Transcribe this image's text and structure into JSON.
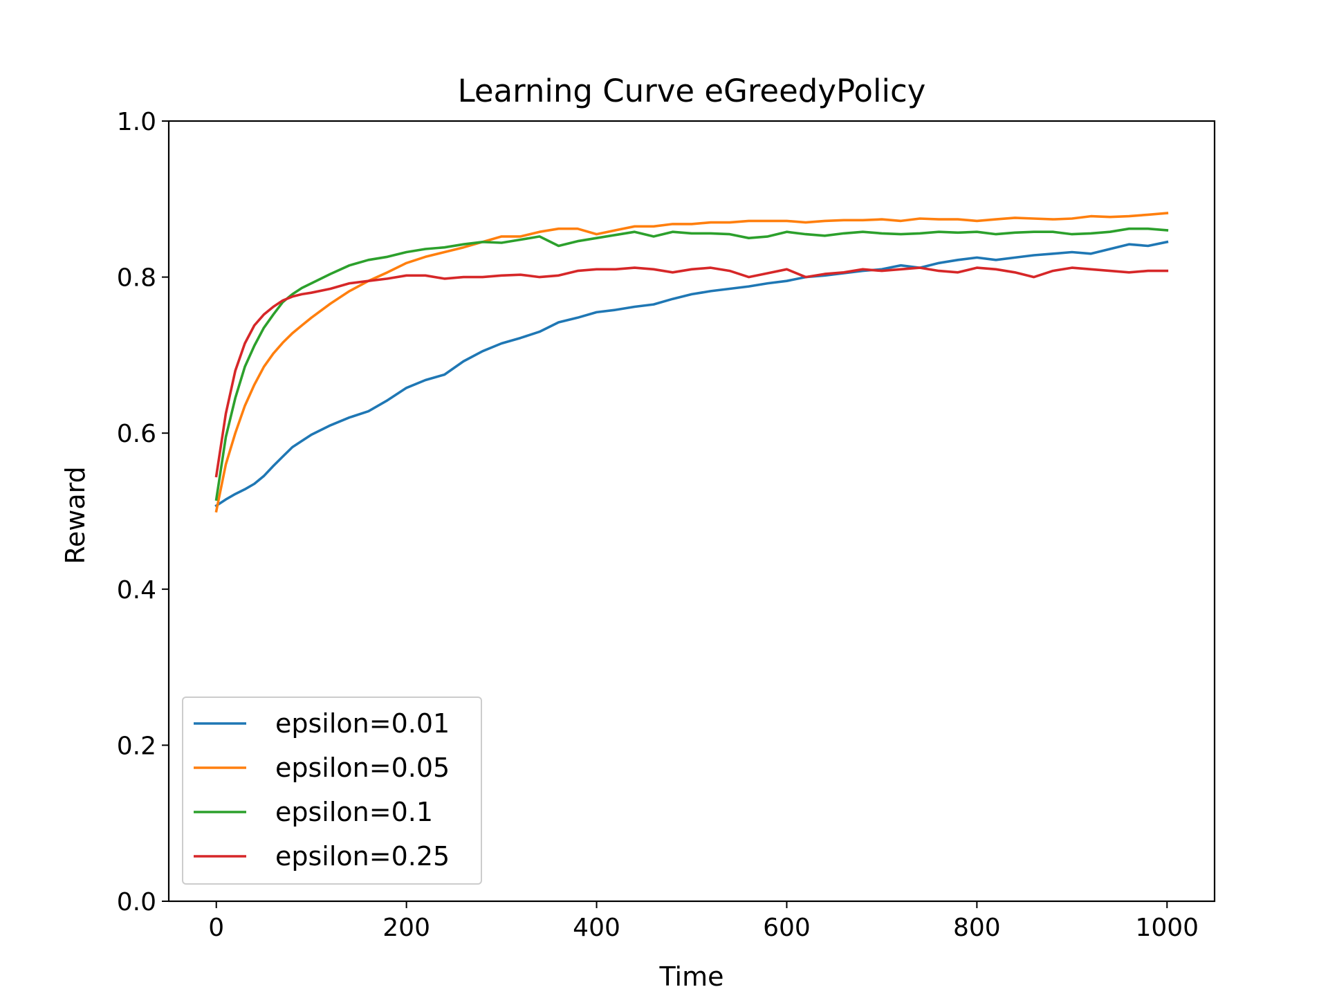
{
  "chart_data": {
    "type": "line",
    "title": "Learning Curve eGreedyPolicy",
    "xlabel": "Time",
    "ylabel": "Reward",
    "xlim": [
      -50,
      1050
    ],
    "ylim": [
      0.0,
      1.0
    ],
    "xticks": [
      0,
      200,
      400,
      600,
      800,
      1000
    ],
    "yticks": [
      0.0,
      0.2,
      0.4,
      0.6,
      0.8,
      1.0
    ],
    "xtick_labels": [
      "0",
      "200",
      "400",
      "600",
      "800",
      "1000"
    ],
    "ytick_labels": [
      "0.0",
      "0.2",
      "0.4",
      "0.6",
      "0.8",
      "1.0"
    ],
    "grid": false,
    "legend_position": "lower-left",
    "series": [
      {
        "name": "epsilon=0.01",
        "color": "#1f77b4",
        "x": [
          0,
          10,
          20,
          30,
          40,
          50,
          60,
          70,
          80,
          90,
          100,
          120,
          140,
          160,
          180,
          200,
          220,
          240,
          260,
          280,
          300,
          320,
          340,
          360,
          380,
          400,
          420,
          440,
          460,
          480,
          500,
          520,
          540,
          560,
          580,
          600,
          620,
          640,
          660,
          680,
          700,
          720,
          740,
          760,
          780,
          800,
          820,
          840,
          860,
          880,
          900,
          920,
          940,
          960,
          980,
          1000
        ],
        "y": [
          0.507,
          0.515,
          0.522,
          0.528,
          0.535,
          0.545,
          0.558,
          0.57,
          0.582,
          0.59,
          0.598,
          0.61,
          0.62,
          0.628,
          0.642,
          0.658,
          0.668,
          0.675,
          0.692,
          0.705,
          0.715,
          0.722,
          0.73,
          0.742,
          0.748,
          0.755,
          0.758,
          0.762,
          0.765,
          0.772,
          0.778,
          0.782,
          0.785,
          0.788,
          0.792,
          0.795,
          0.8,
          0.802,
          0.805,
          0.808,
          0.81,
          0.815,
          0.812,
          0.818,
          0.822,
          0.825,
          0.822,
          0.825,
          0.828,
          0.83,
          0.832,
          0.83,
          0.836,
          0.842,
          0.84,
          0.845
        ]
      },
      {
        "name": "epsilon=0.05",
        "color": "#ff7f0e",
        "x": [
          0,
          10,
          20,
          30,
          40,
          50,
          60,
          70,
          80,
          90,
          100,
          120,
          140,
          160,
          180,
          200,
          220,
          240,
          260,
          280,
          300,
          320,
          340,
          360,
          380,
          400,
          420,
          440,
          460,
          480,
          500,
          520,
          540,
          560,
          580,
          600,
          620,
          640,
          660,
          680,
          700,
          720,
          740,
          760,
          780,
          800,
          820,
          840,
          860,
          880,
          900,
          920,
          940,
          960,
          980,
          1000
        ],
        "y": [
          0.5,
          0.56,
          0.6,
          0.635,
          0.662,
          0.685,
          0.702,
          0.716,
          0.728,
          0.738,
          0.748,
          0.766,
          0.782,
          0.795,
          0.806,
          0.818,
          0.826,
          0.832,
          0.838,
          0.845,
          0.852,
          0.852,
          0.858,
          0.862,
          0.862,
          0.855,
          0.86,
          0.865,
          0.865,
          0.868,
          0.868,
          0.87,
          0.87,
          0.872,
          0.872,
          0.872,
          0.87,
          0.872,
          0.873,
          0.873,
          0.874,
          0.872,
          0.875,
          0.874,
          0.874,
          0.872,
          0.874,
          0.876,
          0.875,
          0.874,
          0.875,
          0.878,
          0.877,
          0.878,
          0.88,
          0.882
        ]
      },
      {
        "name": "epsilon=0.1",
        "color": "#2ca02c",
        "x": [
          0,
          10,
          20,
          30,
          40,
          50,
          60,
          70,
          80,
          90,
          100,
          120,
          140,
          160,
          180,
          200,
          220,
          240,
          260,
          280,
          300,
          320,
          340,
          360,
          380,
          400,
          420,
          440,
          460,
          480,
          500,
          520,
          540,
          560,
          580,
          600,
          620,
          640,
          660,
          680,
          700,
          720,
          740,
          760,
          780,
          800,
          820,
          840,
          860,
          880,
          900,
          920,
          940,
          960,
          980,
          1000
        ],
        "y": [
          0.515,
          0.595,
          0.645,
          0.685,
          0.712,
          0.735,
          0.752,
          0.768,
          0.778,
          0.786,
          0.792,
          0.804,
          0.815,
          0.822,
          0.826,
          0.832,
          0.836,
          0.838,
          0.842,
          0.845,
          0.844,
          0.848,
          0.852,
          0.84,
          0.846,
          0.85,
          0.854,
          0.858,
          0.852,
          0.858,
          0.856,
          0.856,
          0.855,
          0.85,
          0.852,
          0.858,
          0.855,
          0.853,
          0.856,
          0.858,
          0.856,
          0.855,
          0.856,
          0.858,
          0.857,
          0.858,
          0.855,
          0.857,
          0.858,
          0.858,
          0.855,
          0.856,
          0.858,
          0.862,
          0.862,
          0.86
        ]
      },
      {
        "name": "epsilon=0.25",
        "color": "#d62728",
        "x": [
          0,
          10,
          20,
          30,
          40,
          50,
          60,
          70,
          80,
          90,
          100,
          120,
          140,
          160,
          180,
          200,
          220,
          240,
          260,
          280,
          300,
          320,
          340,
          360,
          380,
          400,
          420,
          440,
          460,
          480,
          500,
          520,
          540,
          560,
          580,
          600,
          620,
          640,
          660,
          680,
          700,
          720,
          740,
          760,
          780,
          800,
          820,
          840,
          860,
          880,
          900,
          920,
          940,
          960,
          980,
          1000
        ],
        "y": [
          0.545,
          0.625,
          0.68,
          0.715,
          0.738,
          0.752,
          0.762,
          0.77,
          0.775,
          0.778,
          0.78,
          0.785,
          0.792,
          0.795,
          0.798,
          0.802,
          0.802,
          0.798,
          0.8,
          0.8,
          0.802,
          0.803,
          0.8,
          0.802,
          0.808,
          0.81,
          0.81,
          0.812,
          0.81,
          0.806,
          0.81,
          0.812,
          0.808,
          0.8,
          0.805,
          0.81,
          0.8,
          0.804,
          0.806,
          0.81,
          0.808,
          0.81,
          0.812,
          0.808,
          0.806,
          0.812,
          0.81,
          0.806,
          0.8,
          0.808,
          0.812,
          0.81,
          0.808,
          0.806,
          0.808,
          0.808
        ]
      }
    ]
  }
}
